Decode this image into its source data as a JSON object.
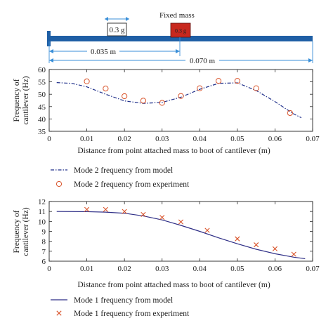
{
  "schematic": {
    "fixed_mass_label": "Fixed mass",
    "block_label": "0.3 g",
    "moving_mass_label": "0.3 g",
    "dim_short": "0.035 m",
    "dim_long": "0.070 m",
    "beam_color": "#1f5fa5",
    "dim_color": "#3a8fd8",
    "mass_color": "#c8281e"
  },
  "chart_data": [
    {
      "type": "line",
      "ylabel": "Frequency of cantilever (Hz)",
      "xlabel": "Distance from point attached mass to boot of cantilever (m)",
      "xlim": [
        0,
        0.07
      ],
      "ylim": [
        35,
        60
      ],
      "x_ticks": [
        0,
        0.01,
        0.02,
        0.03,
        0.04,
        0.05,
        0.06,
        0.07
      ],
      "x_tick_labels": [
        "0",
        "0.01",
        "0.02",
        "0.03",
        "0.04",
        "0.05",
        "0.06",
        "0.07"
      ],
      "y_ticks": [
        35,
        40,
        45,
        50,
        55,
        60
      ],
      "y_tick_labels": [
        "35",
        "40",
        "45",
        "50",
        "55",
        "60"
      ],
      "grid": false,
      "legend_placement": "below",
      "series": [
        {
          "name": "Mode 2 frequency from model",
          "style": "dash-dot",
          "color": "#1f2f8a",
          "x": [
            0.002,
            0.006,
            0.01,
            0.015,
            0.02,
            0.025,
            0.03,
            0.035,
            0.04,
            0.045,
            0.05,
            0.055,
            0.06,
            0.065,
            0.067
          ],
          "y": [
            54.7,
            54.4,
            53.0,
            50.0,
            47.3,
            46.3,
            46.7,
            48.8,
            52.0,
            54.4,
            54.6,
            51.5,
            47.0,
            42.0,
            40.5
          ]
        },
        {
          "name": "Mode 2 frequency from experiment",
          "style": "circle-marker",
          "color": "#d9542b",
          "x": [
            0.01,
            0.015,
            0.02,
            0.025,
            0.03,
            0.035,
            0.04,
            0.045,
            0.05,
            0.055,
            0.064
          ],
          "y": [
            55.2,
            52.3,
            49.2,
            47.4,
            46.5,
            49.3,
            52.4,
            55.4,
            55.4,
            52.4,
            42.4
          ]
        }
      ]
    },
    {
      "type": "line",
      "ylabel": "Frequency of cantilever (Hz)",
      "xlabel": "Distance from point attached mass to boot of cantilever (m)",
      "xlim": [
        0,
        0.07
      ],
      "ylim": [
        6,
        12
      ],
      "x_ticks": [
        0,
        0.01,
        0.02,
        0.03,
        0.04,
        0.05,
        0.06,
        0.07
      ],
      "x_tick_labels": [
        "0",
        "0.01",
        "0.02",
        "0.03",
        "0.04",
        "0.05",
        "0.06",
        "0.07"
      ],
      "y_ticks": [
        6,
        7,
        8,
        9,
        10,
        11,
        12
      ],
      "y_tick_labels": [
        "6",
        "7",
        "8",
        "9",
        "10",
        "11",
        "12"
      ],
      "grid": false,
      "legend_placement": "below",
      "series": [
        {
          "name": "Mode 1 frequency from model",
          "style": "solid",
          "color": "#2e2e86",
          "x": [
            0.002,
            0.01,
            0.015,
            0.02,
            0.025,
            0.03,
            0.035,
            0.04,
            0.045,
            0.05,
            0.055,
            0.06,
            0.065,
            0.068
          ],
          "y": [
            11.0,
            10.98,
            10.93,
            10.82,
            10.55,
            10.15,
            9.6,
            9.0,
            8.35,
            7.75,
            7.2,
            6.75,
            6.4,
            6.25
          ]
        },
        {
          "name": "Mode 1 frequency from experiment",
          "style": "x-marker",
          "color": "#d9542b",
          "x": [
            0.01,
            0.015,
            0.02,
            0.025,
            0.03,
            0.035,
            0.042,
            0.05,
            0.055,
            0.06,
            0.065
          ],
          "y": [
            11.2,
            11.2,
            11.0,
            10.7,
            10.4,
            9.95,
            9.1,
            8.25,
            7.65,
            7.25,
            6.7
          ]
        }
      ]
    }
  ]
}
